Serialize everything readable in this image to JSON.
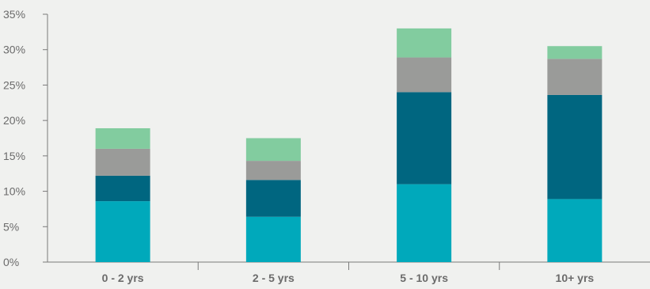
{
  "chart_data": {
    "type": "bar",
    "stacked": true,
    "categories": [
      "0 - 2 yrs",
      "2 - 5 yrs",
      "5 - 10 yrs",
      "10+ yrs"
    ],
    "series": [
      {
        "values": [
          8.6,
          6.4,
          11.0,
          8.9
        ],
        "color": "#00a9bb"
      },
      {
        "values": [
          3.6,
          5.2,
          13.0,
          14.7
        ],
        "color": "#006680"
      },
      {
        "values": [
          3.8,
          2.7,
          4.9,
          5.1
        ],
        "color": "#9a9b99"
      },
      {
        "values": [
          2.9,
          3.2,
          4.1,
          1.8
        ],
        "color": "#82cc9f"
      }
    ],
    "ylim": [
      0,
      35
    ],
    "yticks": [
      "0%",
      "5%",
      "10%",
      "15%",
      "20%",
      "25%",
      "30%",
      "35%"
    ],
    "ytick_values": [
      0,
      5,
      10,
      15,
      20,
      25,
      30,
      35
    ],
    "grid": false,
    "title": "",
    "xlabel": "",
    "ylabel": ""
  },
  "colors": {
    "background": "#f0f1ef",
    "axis": "#7a7a7a",
    "text": "#6b6b6b"
  }
}
